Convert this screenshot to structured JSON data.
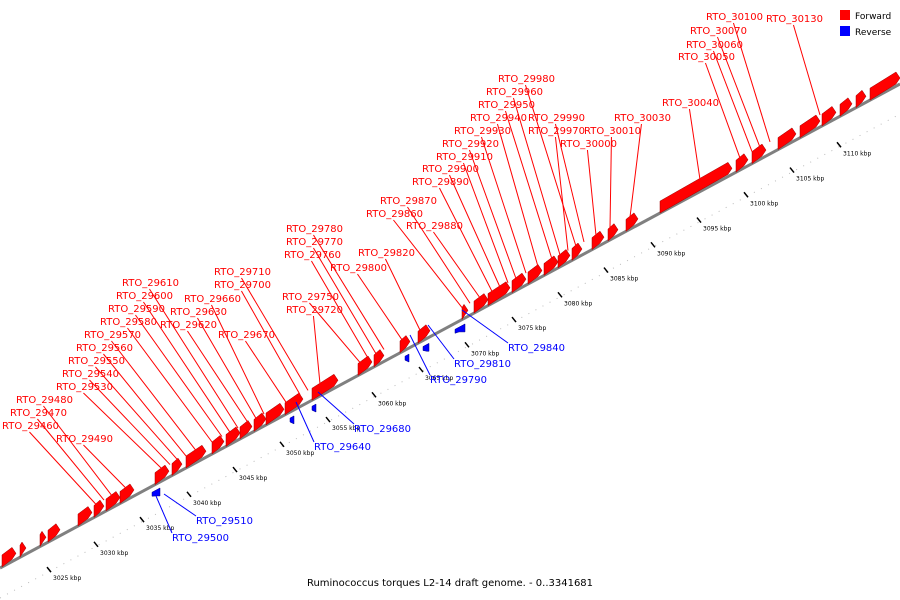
{
  "colors": {
    "forward": "#ff0000",
    "reverse": "#0000ff",
    "backbone": "#808080"
  },
  "legend": {
    "forward_label": "Forward",
    "reverse_label": "Reverse"
  },
  "caption": "Ruminococcus torques L2-14 draft genome. - 0..3341681",
  "axis_ticks": [
    "3025 kbp",
    "3030 kbp",
    "3035 kbp",
    "3040 kbp",
    "3045 kbp",
    "3050 kbp",
    "3055 kbp",
    "3060 kbp",
    "3065 kbp",
    "3070 kbp",
    "3075 kbp",
    "3080 kbp",
    "3085 kbp",
    "3090 kbp",
    "3095 kbp",
    "3100 kbp",
    "3105 kbp",
    "3110 kbp"
  ],
  "forward_labels": [
    "RTO_29460",
    "RTO_29470",
    "RTO_29480",
    "RTO_29490",
    "RTO_29530",
    "RTO_29540",
    "RTO_29550",
    "RTO_29560",
    "RTO_29570",
    "RTO_29580",
    "RTO_29590",
    "RTO_29600",
    "RTO_29610",
    "RTO_29620",
    "RTO_29630",
    "RTO_29660",
    "RTO_29670",
    "RTO_29700",
    "RTO_29710",
    "RTO_29720",
    "RTO_29750",
    "RTO_29760",
    "RTO_29770",
    "RTO_29780",
    "RTO_29800",
    "RTO_29820",
    "RTO_29860",
    "RTO_29870",
    "RTO_29880",
    "RTO_29890",
    "RTO_29900",
    "RTO_29910",
    "RTO_29920",
    "RTO_29930",
    "RTO_29940",
    "RTO_29950",
    "RTO_29960",
    "RTO_29970",
    "RTO_29980",
    "RTO_29990",
    "RTO_30000",
    "RTO_30010",
    "RTO_30030",
    "RTO_30040",
    "RTO_30050",
    "RTO_30060",
    "RTO_30070",
    "RTO_30100",
    "RTO_30130"
  ],
  "reverse_labels": [
    "RTO_29500",
    "RTO_29510",
    "RTO_29640",
    "RTO_29680",
    "RTO_29790",
    "RTO_29810",
    "RTO_29840"
  ]
}
